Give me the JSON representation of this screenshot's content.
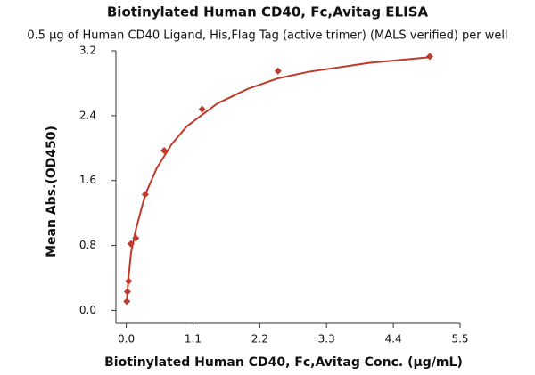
{
  "chart_data": {
    "type": "scatter",
    "title": "Biotinylated Human CD40, Fc,Avitag ELISA",
    "subtitle": "0.5 μg of Human CD40 Ligand, His,Flag Tag (active trimer) (MALS verified) per well",
    "x_label": "Biotinylated Human CD40, Fc,Avitag Conc. (μg/mL)",
    "y_label": "Mean Abs.(OD450)",
    "color": "#c0392b",
    "x": [
      0.0098,
      0.0195,
      0.039,
      0.078,
      0.156,
      0.3125,
      0.625,
      1.25,
      2.5,
      5
    ],
    "values": [
      0.11,
      0.23,
      0.36,
      0.82,
      0.89,
      1.43,
      1.97,
      2.48,
      2.95,
      3.13
    ],
    "fit": {
      "x": [
        0.0098,
        0.02,
        0.04,
        0.08,
        0.16,
        0.31,
        0.5,
        0.75,
        1,
        1.5,
        2,
        2.5,
        3,
        4,
        5
      ],
      "values": [
        0.11,
        0.24,
        0.42,
        0.72,
        1.0,
        1.42,
        1.75,
        2.05,
        2.27,
        2.55,
        2.73,
        2.86,
        2.94,
        3.05,
        3.12
      ]
    },
    "xlim": [
      -0.17,
      5.5
    ],
    "ylim": [
      -0.16,
      3.2
    ],
    "xticks": [
      {
        "value": 0,
        "label": "0.0"
      },
      1.1,
      2.2,
      3.3,
      4.4,
      5.5
    ],
    "yticks": [
      {
        "value": 0,
        "label": "0.0"
      },
      0.8,
      1.6,
      2.4,
      3.2
    ]
  }
}
